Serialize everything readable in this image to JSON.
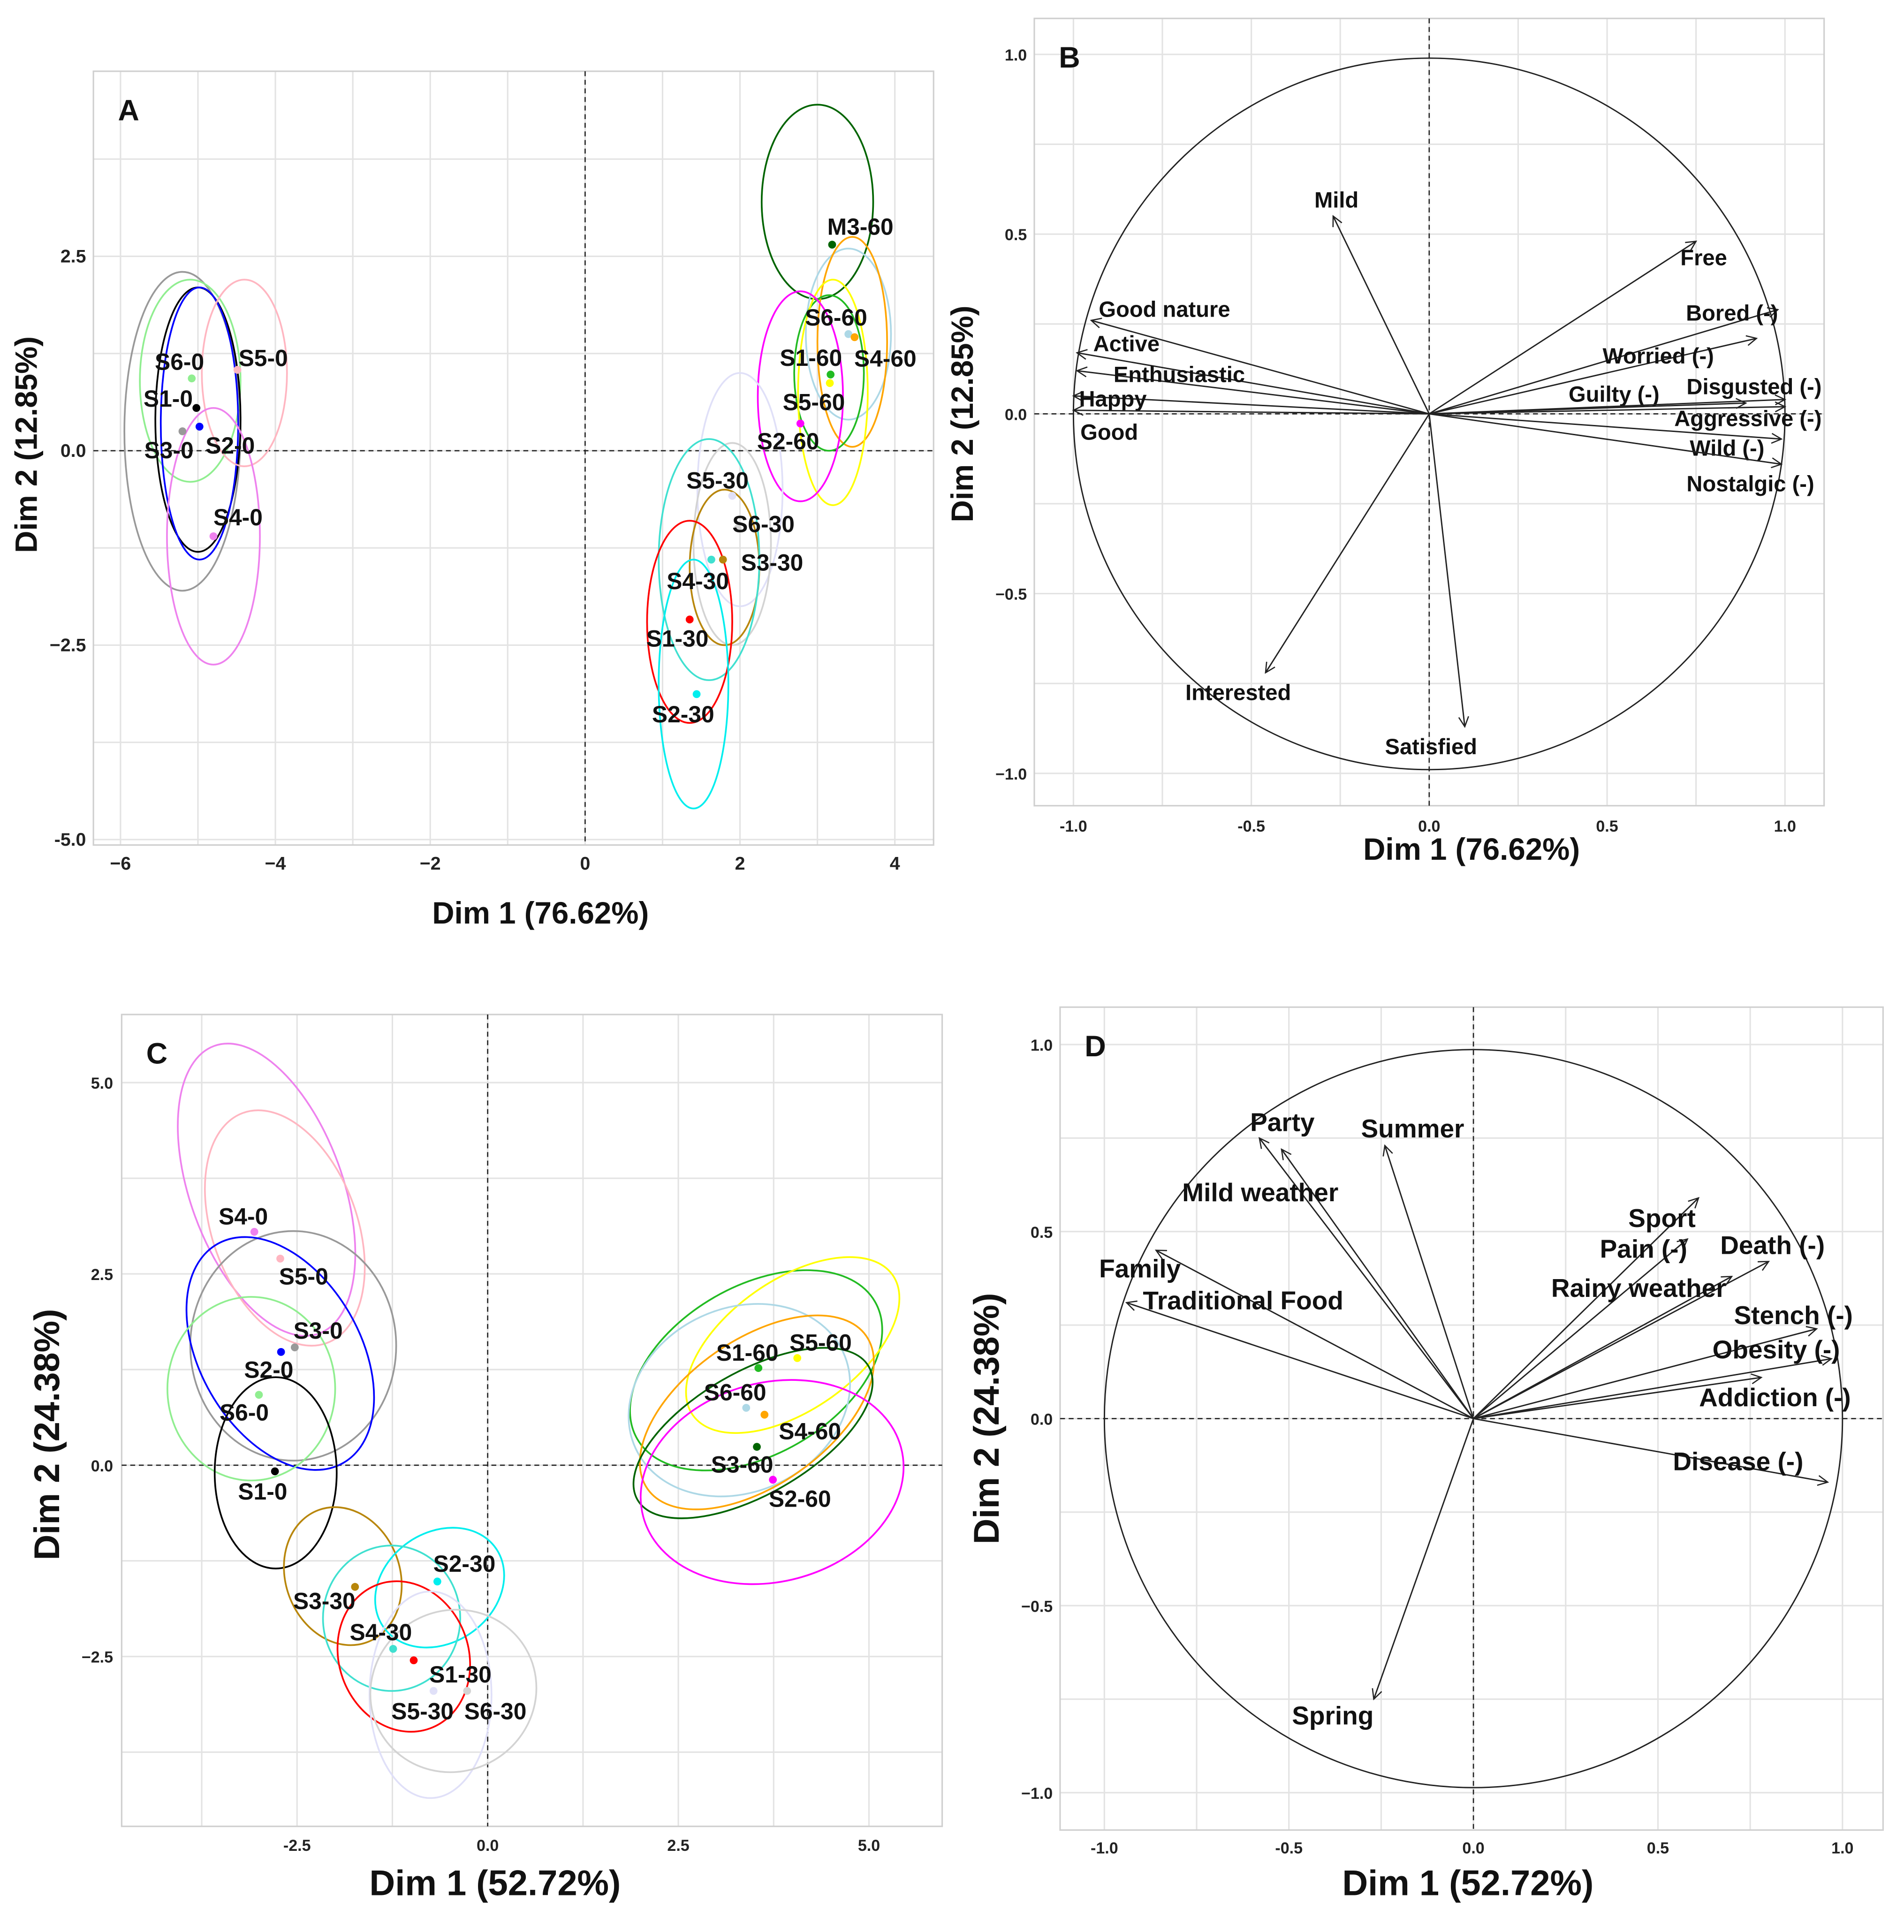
{
  "chart_data": [
    {
      "panel": "A",
      "type": "scatter",
      "title": "A",
      "xlabel": "Dim 1 (76.62%)",
      "ylabel": "Dim 2 (12.85%)",
      "xlim": [
        -6.35,
        4.5
      ],
      "ylim": [
        -5.07,
        4.88
      ],
      "grid": true,
      "xticks": [
        -6,
        -4,
        -2,
        0,
        2,
        4
      ],
      "xtick_labels": [
        "−6",
        "−4",
        "−2",
        "0",
        "2",
        "4"
      ],
      "yticks": [
        -5,
        -2.5,
        0,
        2.5
      ],
      "ytick_labels": [
        "-5.0",
        "−2.5",
        "0.0",
        "2.5"
      ],
      "minor_x": [
        -5,
        -3,
        -1,
        1,
        3
      ],
      "minor_y": [
        -3.75,
        -1.25,
        1.25,
        3.75
      ],
      "points": [
        {
          "label": "S6-0",
          "x": -5.08,
          "y": 0.93,
          "color": "#90ee90"
        },
        {
          "label": "S5-0",
          "x": -4.49,
          "y": 1.04,
          "color": "#ffb6c1"
        },
        {
          "label": "S1-0",
          "x": -5.02,
          "y": 0.55,
          "color": "#000000"
        },
        {
          "label": "S3-0",
          "x": -5.2,
          "y": 0.25,
          "color": "#999999"
        },
        {
          "label": "S2-0",
          "x": -4.98,
          "y": 0.31,
          "color": "#0000ff"
        },
        {
          "label": "S4-0",
          "x": -4.8,
          "y": -1.1,
          "color": "#ee82ee"
        },
        {
          "label": "M3-60",
          "x": 3.19,
          "y": 2.65,
          "color": "#006400",
          "label_color": "#006400"
        },
        {
          "label": "S6-60",
          "x": 3.4,
          "y": 1.5,
          "color": "#add8e6"
        },
        {
          "label": "S4-60",
          "x": 3.48,
          "y": 1.46,
          "color": "#ffa500"
        },
        {
          "label": "S1-60",
          "x": 3.17,
          "y": 0.98,
          "color": "#22bb22"
        },
        {
          "label": "S5-60",
          "x": 3.16,
          "y": 0.87,
          "color": "#ffff00"
        },
        {
          "label": "S2-60",
          "x": 2.78,
          "y": 0.35,
          "color": "#ff00ff"
        },
        {
          "label": "S5-30",
          "x": 1.9,
          "y": -0.58,
          "color": "#e0e0f8"
        },
        {
          "label": "S6-30",
          "x": 1.97,
          "y": -1.0,
          "color": "#d3d3d3"
        },
        {
          "label": "S3-30",
          "x": 1.78,
          "y": -1.4,
          "color": "#b8860b"
        },
        {
          "label": "S4-30",
          "x": 1.63,
          "y": -1.4,
          "color": "#40e0d0"
        },
        {
          "label": "S1-30",
          "x": 1.35,
          "y": -2.17,
          "color": "#ff0000"
        },
        {
          "label": "S2-30",
          "x": 1.44,
          "y": -3.13,
          "color": "#00eeee"
        }
      ],
      "ellipses": [
        {
          "group": "S3-0",
          "cx": -5.2,
          "cy": 0.25,
          "rx": 0.75,
          "ry": 2.05,
          "angle_deg": 0,
          "color": "#999999"
        },
        {
          "group": "S6-0",
          "cx": -5.1,
          "cy": 0.9,
          "rx": 0.65,
          "ry": 1.3,
          "angle_deg": 0,
          "color": "#90ee90"
        },
        {
          "group": "S1-0",
          "cx": -5.0,
          "cy": 0.4,
          "rx": 0.55,
          "ry": 1.7,
          "angle_deg": 0,
          "color": "#000000"
        },
        {
          "group": "S2-0",
          "cx": -4.98,
          "cy": 0.35,
          "rx": 0.5,
          "ry": 1.75,
          "angle_deg": 0,
          "color": "#0000ff"
        },
        {
          "group": "S5-0",
          "cx": -4.4,
          "cy": 1.0,
          "rx": 0.55,
          "ry": 1.2,
          "angle_deg": 0,
          "color": "#ffb6c1"
        },
        {
          "group": "S4-0",
          "cx": -4.8,
          "cy": -1.1,
          "rx": 0.6,
          "ry": 1.65,
          "angle_deg": 0,
          "color": "#ee82ee"
        },
        {
          "group": "S3-60",
          "cx": 3.0,
          "cy": 3.2,
          "rx": 0.72,
          "ry": 1.25,
          "angle_deg": 0,
          "color": "#006400"
        },
        {
          "group": "S6-60",
          "cx": 3.4,
          "cy": 1.5,
          "rx": 0.55,
          "ry": 1.1,
          "angle_deg": 0,
          "color": "#add8e6"
        },
        {
          "group": "S4-60",
          "cx": 3.45,
          "cy": 1.4,
          "rx": 0.45,
          "ry": 1.35,
          "angle_deg": 0,
          "color": "#ffa500"
        },
        {
          "group": "S1-60",
          "cx": 3.15,
          "cy": 1.0,
          "rx": 0.45,
          "ry": 1.0,
          "angle_deg": 0,
          "color": "#22bb22"
        },
        {
          "group": "S5-60",
          "cx": 3.2,
          "cy": 0.75,
          "rx": 0.45,
          "ry": 1.45,
          "angle_deg": 0,
          "color": "#ffff00"
        },
        {
          "group": "S2-60",
          "cx": 2.78,
          "cy": 0.7,
          "rx": 0.55,
          "ry": 1.35,
          "angle_deg": 0,
          "color": "#ff00ff"
        },
        {
          "group": "S5-30",
          "cx": 2.0,
          "cy": -0.5,
          "rx": 0.55,
          "ry": 1.5,
          "angle_deg": 0,
          "color": "#e0e0f8"
        },
        {
          "group": "S6-30",
          "cx": 1.9,
          "cy": -1.2,
          "rx": 0.5,
          "ry": 1.3,
          "angle_deg": 0,
          "color": "#d3d3d3"
        },
        {
          "group": "S3-30",
          "cx": 1.8,
          "cy": -1.5,
          "rx": 0.45,
          "ry": 1.0,
          "angle_deg": 0,
          "color": "#b8860b"
        },
        {
          "group": "S4-30",
          "cx": 1.6,
          "cy": -1.4,
          "rx": 0.65,
          "ry": 1.55,
          "angle_deg": 0,
          "color": "#40e0d0"
        },
        {
          "group": "S1-30",
          "cx": 1.35,
          "cy": -2.2,
          "rx": 0.55,
          "ry": 1.3,
          "angle_deg": 0,
          "color": "#ff0000"
        },
        {
          "group": "S2-30",
          "cx": 1.4,
          "cy": -3.0,
          "rx": 0.45,
          "ry": 1.6,
          "angle_deg": 0,
          "color": "#00eeee"
        }
      ]
    },
    {
      "panel": "B",
      "type": "vector",
      "title": "B",
      "xlabel": "Dim 1 (76.62%)",
      "ylabel": "Dim 2 (12.85%)",
      "xlim": [
        -1.11,
        1.11
      ],
      "ylim": [
        -1.09,
        1.1
      ],
      "grid": true,
      "xticks": [
        -1,
        -0.5,
        0,
        0.5,
        1
      ],
      "xtick_labels": [
        "-1.0",
        "-0.5",
        "0.0",
        "0.5",
        "1.0"
      ],
      "yticks": [
        -1,
        -0.5,
        0,
        0.5,
        1
      ],
      "ytick_labels": [
        "−1.0",
        "−0.5",
        "0.0",
        "0.5",
        "1.0"
      ],
      "minor_x": [
        -0.75,
        -0.25,
        0.25,
        0.75
      ],
      "minor_y": [
        -0.75,
        -0.25,
        0.25,
        0.75
      ],
      "arrows": [
        {
          "label": "Mild",
          "x": -0.27,
          "y": 0.55
        },
        {
          "label": "Free",
          "x": 0.75,
          "y": 0.48
        },
        {
          "label": "Bored (-)",
          "x": 0.98,
          "y": 0.29
        },
        {
          "label": "Worried (-)",
          "x": 0.92,
          "y": 0.21
        },
        {
          "label": "Guilty (-)",
          "x": 0.89,
          "y": 0.03
        },
        {
          "label": "Disgusted (-)",
          "x": 1.0,
          "y": 0.04
        },
        {
          "label": "Aggressive (-)",
          "x": 1.0,
          "y": 0.02
        },
        {
          "label": "Wild (-)",
          "x": 0.99,
          "y": -0.07
        },
        {
          "label": "Nostalgic (-)",
          "x": 0.99,
          "y": -0.14
        },
        {
          "label": "Good nature",
          "x": -0.95,
          "y": 0.26
        },
        {
          "label": "Active",
          "x": -0.99,
          "y": 0.17
        },
        {
          "label": "Enthusiastic",
          "x": -0.99,
          "y": 0.12
        },
        {
          "label": "Happy",
          "x": -1.0,
          "y": 0.05
        },
        {
          "label": "Good",
          "x": -1.0,
          "y": 0.01
        },
        {
          "label": "Interested",
          "x": -0.46,
          "y": -0.72
        },
        {
          "label": "Satisfied",
          "x": 0.1,
          "y": -0.87
        }
      ]
    },
    {
      "panel": "C",
      "type": "scatter",
      "title": "C",
      "xlabel": "Dim 1 (52.72%)",
      "ylabel": "Dim 2 (24.38%)",
      "xlim": [
        -4.8,
        5.96
      ],
      "ylim": [
        -4.72,
        5.89
      ],
      "grid": true,
      "xticks": [
        -2.5,
        0,
        2.5,
        5
      ],
      "xtick_labels": [
        "-2.5",
        "0.0",
        "2.5",
        "5.0"
      ],
      "yticks": [
        -2.5,
        0,
        2.5,
        5
      ],
      "ytick_labels": [
        "−2.5",
        "0.0",
        "2.5",
        "5.0"
      ],
      "minor_x": [
        -3.75,
        -1.25,
        1.25,
        3.75
      ],
      "minor_y": [
        -3.75,
        -1.25,
        1.25,
        3.75
      ],
      "points": [
        {
          "label": "S4-0",
          "x": -3.06,
          "y": 3.05,
          "color": "#ee82ee"
        },
        {
          "label": "S5-0",
          "x": -2.72,
          "y": 2.7,
          "color": "#ffb6c1"
        },
        {
          "label": "S3-0",
          "x": -2.53,
          "y": 1.54,
          "color": "#999999"
        },
        {
          "label": "S2-0",
          "x": -2.71,
          "y": 1.48,
          "color": "#0000ff"
        },
        {
          "label": "S6-0",
          "x": -3.0,
          "y": 0.92,
          "color": "#90ee90"
        },
        {
          "label": "S1-0",
          "x": -2.79,
          "y": -0.08,
          "color": "#000000"
        },
        {
          "label": "S3-30",
          "x": -1.74,
          "y": -1.59,
          "color": "#b8860b"
        },
        {
          "label": "S2-30",
          "x": -0.66,
          "y": -1.52,
          "color": "#00eeee"
        },
        {
          "label": "S4-30",
          "x": -1.24,
          "y": -2.4,
          "color": "#40e0d0"
        },
        {
          "label": "S1-30",
          "x": -0.97,
          "y": -2.55,
          "color": "#ff0000"
        },
        {
          "label": "S5-30",
          "x": -0.71,
          "y": -2.95,
          "color": "#e0e0f8"
        },
        {
          "label": "S6-30",
          "x": -0.27,
          "y": -2.95,
          "color": "#d3d3d3"
        },
        {
          "label": "S1-60",
          "x": 3.55,
          "y": 1.27,
          "color": "#22bb22"
        },
        {
          "label": "S5-60",
          "x": 4.06,
          "y": 1.4,
          "color": "#ffff00"
        },
        {
          "label": "S6-60",
          "x": 3.39,
          "y": 0.75,
          "color": "#add8e6"
        },
        {
          "label": "S4-60",
          "x": 3.63,
          "y": 0.66,
          "color": "#ffa500"
        },
        {
          "label": "S3-60",
          "x": 3.53,
          "y": 0.24,
          "color": "#006400"
        },
        {
          "label": "S2-60",
          "x": 3.74,
          "y": -0.19,
          "color": "#ff00ff"
        }
      ],
      "ellipses": [
        {
          "group": "S4-0",
          "cx": -2.9,
          "cy": 3.6,
          "rx": 1.0,
          "ry": 2.0,
          "angle_deg": 20,
          "color": "#ee82ee"
        },
        {
          "group": "S5-0",
          "cx": -2.66,
          "cy": 3.1,
          "rx": 0.95,
          "ry": 1.6,
          "angle_deg": 20,
          "color": "#ffb6c1"
        },
        {
          "group": "S3-0",
          "cx": -2.55,
          "cy": 1.56,
          "rx": 1.35,
          "ry": 1.5,
          "angle_deg": 0,
          "color": "#999999"
        },
        {
          "group": "S2-0",
          "cx": -2.72,
          "cy": 1.46,
          "rx": 1.05,
          "ry": 1.65,
          "angle_deg": 30,
          "color": "#0000ff"
        },
        {
          "group": "S6-0",
          "cx": -3.1,
          "cy": 1.0,
          "rx": 1.1,
          "ry": 1.2,
          "angle_deg": 0,
          "color": "#90ee90"
        },
        {
          "group": "S1-0",
          "cx": -2.78,
          "cy": -0.1,
          "rx": 0.8,
          "ry": 1.25,
          "angle_deg": 0,
          "color": "#000000"
        },
        {
          "group": "S3-30",
          "cx": -1.9,
          "cy": -1.45,
          "rx": 0.75,
          "ry": 0.92,
          "angle_deg": 20,
          "color": "#b8860b"
        },
        {
          "group": "S2-30",
          "cx": -0.63,
          "cy": -1.6,
          "rx": 0.9,
          "ry": 0.72,
          "angle_deg": 35,
          "color": "#00eeee"
        },
        {
          "group": "S4-30",
          "cx": -1.26,
          "cy": -2.0,
          "rx": 0.9,
          "ry": 0.95,
          "angle_deg": 0,
          "color": "#40e0d0"
        },
        {
          "group": "S1-30",
          "cx": -1.1,
          "cy": -2.5,
          "rx": 0.85,
          "ry": 1.0,
          "angle_deg": 20,
          "color": "#ff0000"
        },
        {
          "group": "S5-30",
          "cx": -0.75,
          "cy": -3.0,
          "rx": 0.8,
          "ry": 1.35,
          "angle_deg": 0,
          "color": "#e0e0f8"
        },
        {
          "group": "S6-30",
          "cx": -0.45,
          "cy": -2.95,
          "rx": 1.1,
          "ry": 1.05,
          "angle_deg": 30,
          "color": "#d3d3d3"
        },
        {
          "group": "S1-60",
          "cx": 3.52,
          "cy": 1.24,
          "rx": 1.8,
          "ry": 1.1,
          "angle_deg": 30,
          "color": "#22bb22"
        },
        {
          "group": "S5-60",
          "cx": 4.0,
          "cy": 1.57,
          "rx": 1.6,
          "ry": 0.85,
          "angle_deg": 35,
          "color": "#ffff00"
        },
        {
          "group": "S6-60",
          "cx": 3.3,
          "cy": 0.85,
          "rx": 1.5,
          "ry": 1.2,
          "angle_deg": 25,
          "color": "#add8e6"
        },
        {
          "group": "S4-60",
          "cx": 3.53,
          "cy": 0.69,
          "rx": 1.75,
          "ry": 0.95,
          "angle_deg": 35,
          "color": "#ffa500"
        },
        {
          "group": "S3-60",
          "cx": 3.48,
          "cy": 0.42,
          "rx": 1.75,
          "ry": 0.8,
          "angle_deg": 30,
          "color": "#006400"
        },
        {
          "group": "S2-60",
          "cx": 3.73,
          "cy": -0.22,
          "rx": 1.75,
          "ry": 1.3,
          "angle_deg": 15,
          "color": "#ff00ff"
        }
      ]
    },
    {
      "panel": "D",
      "type": "vector",
      "title": "D",
      "xlabel": "Dim 1 (52.72%)",
      "ylabel": "Dim 2 (24.38%)",
      "xlim": [
        -1.12,
        1.11
      ],
      "ylim": [
        -1.1,
        1.1
      ],
      "grid": true,
      "xticks": [
        -1,
        -0.5,
        0,
        0.5,
        1
      ],
      "xtick_labels": [
        "-1.0",
        "-0.5",
        "0.0",
        "0.5",
        "1.0"
      ],
      "yticks": [
        -1,
        -0.5,
        0,
        0.5,
        1
      ],
      "ytick_labels": [
        "−1.0",
        "−0.5",
        "0.0",
        "0.5",
        "1.0"
      ],
      "minor_x": [
        -0.75,
        -0.25,
        0.25,
        0.75
      ],
      "minor_y": [
        -0.75,
        -0.25,
        0.25,
        0.75
      ],
      "arrows": [
        {
          "label": "Party",
          "x": -0.58,
          "y": 0.75
        },
        {
          "label": "Summer",
          "x": -0.24,
          "y": 0.73
        },
        {
          "label": "Mild weather",
          "x": -0.52,
          "y": 0.72
        },
        {
          "label": "Family",
          "x": -0.86,
          "y": 0.45
        },
        {
          "label": "Traditional Food",
          "x": -0.94,
          "y": 0.31
        },
        {
          "label": "Sport",
          "x": 0.61,
          "y": 0.59
        },
        {
          "label": "Pain (-)",
          "x": 0.58,
          "y": 0.48
        },
        {
          "label": "Death (-)",
          "x": 0.8,
          "y": 0.42
        },
        {
          "label": "Rainy weather",
          "x": 0.7,
          "y": 0.38
        },
        {
          "label": "Stench (-)",
          "x": 0.93,
          "y": 0.24
        },
        {
          "label": "Obesity (-)",
          "x": 0.97,
          "y": 0.16
        },
        {
          "label": "Addiction (-)",
          "x": 0.78,
          "y": 0.11
        },
        {
          "label": "Disease (-)",
          "x": 0.96,
          "y": -0.17
        },
        {
          "label": "Spring",
          "x": -0.27,
          "y": -0.75
        }
      ]
    }
  ]
}
